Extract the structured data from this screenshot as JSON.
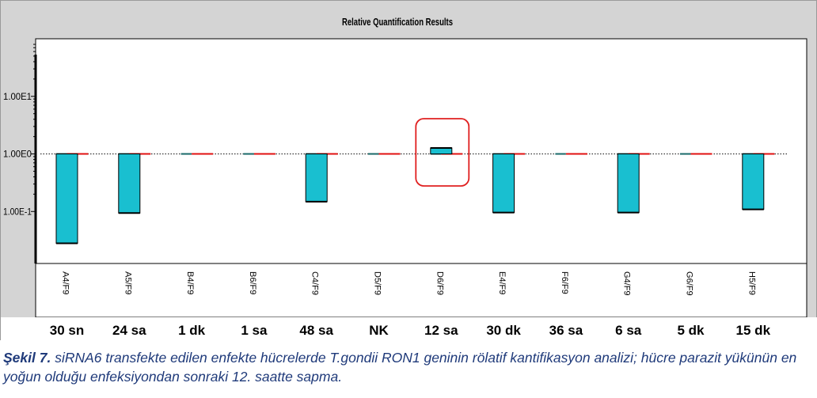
{
  "chart_data": {
    "type": "bar",
    "title": "Relative Quantification Results",
    "scale": "log",
    "ylim": [
      0.0125,
      100
    ],
    "baseline": 1,
    "y_ticks": [
      {
        "value": 10,
        "label": "1.00E1"
      },
      {
        "value": 1,
        "label": "1.00E0"
      },
      {
        "value": 0.1,
        "label": "1.00E-1"
      }
    ],
    "categories": [
      "A4/F9",
      "A5/F9",
      "B4/F9",
      "B6/F9",
      "C4/F9",
      "D5/F9",
      "D6/F9",
      "E4/F9",
      "F6/F9",
      "G4/F9",
      "G6/F9",
      "H5/F9"
    ],
    "time_labels": [
      "30 sn",
      "24 sa",
      "1 dk",
      "1 sa",
      "48 sa",
      "NK",
      "12 sa",
      "30 dk",
      "36 sa",
      "6 sa",
      "5 dk",
      "15 dk"
    ],
    "values": [
      0.028,
      0.094,
      1.0,
      1.0,
      0.148,
      1.0,
      1.27,
      0.096,
      1.0,
      0.096,
      1.0,
      0.109
    ],
    "highlighted_category": "D6/F9",
    "grid": false,
    "colors": {
      "bar_fill": "#19bfd0",
      "bar_stroke": "#000000",
      "ref_red": "#e01010",
      "ref_dark": "#333333",
      "highlight_box": "#e02020",
      "plot_bg": "#ffffff",
      "frame_bg": "#d4d4d4"
    }
  },
  "caption": {
    "lead": "Şekil 7.",
    "text": " siRNA6 transfekte edilen enfekte hücrelerde T.gondii RON1 geninin rölatif kantifikasyon analizi; hücre parazit yükünün en yoğun olduğu enfeksiyondan sonraki 12. saatte sapma."
  }
}
